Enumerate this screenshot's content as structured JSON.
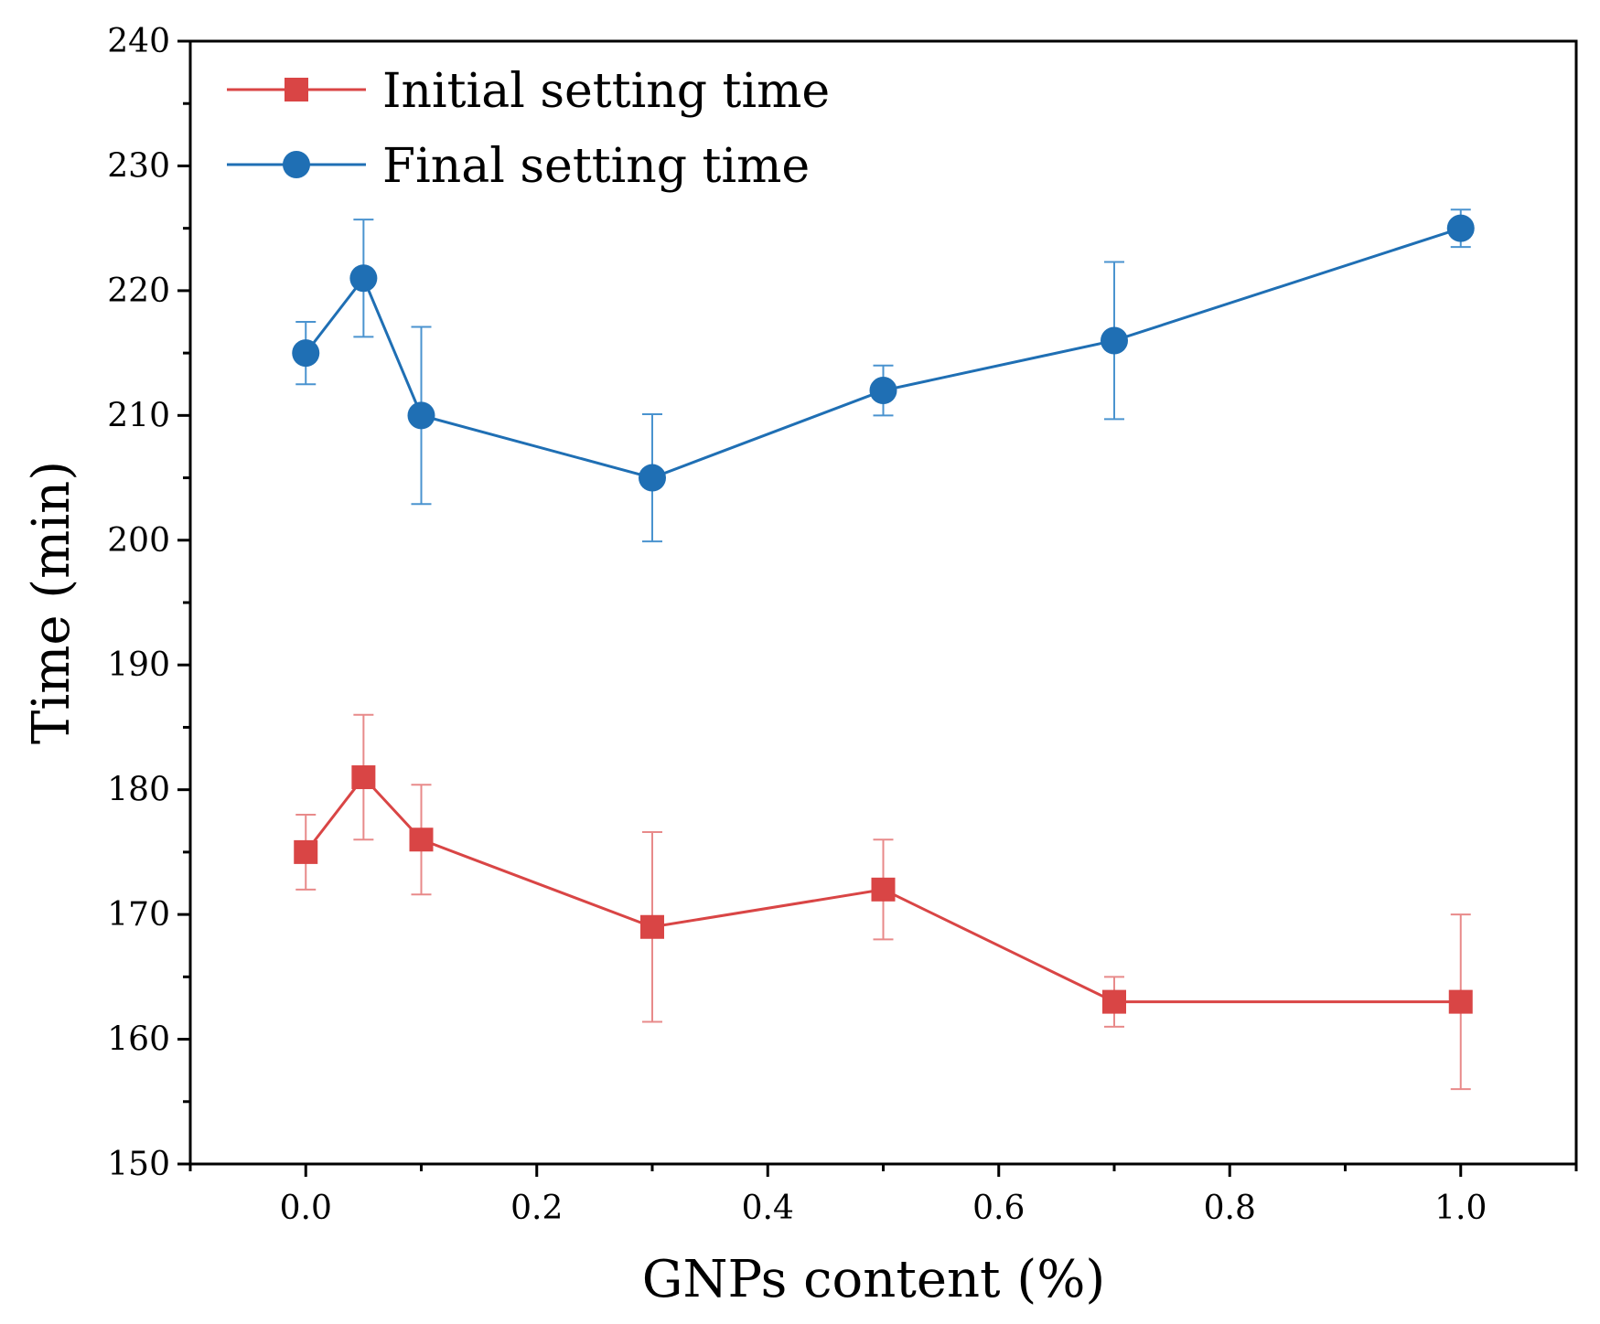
{
  "chart_data": {
    "type": "line",
    "title": "",
    "xlabel": "GNPs content (%)",
    "ylabel": "Time (min)",
    "xlim": [
      -0.1,
      1.1
    ],
    "ylim": [
      150,
      240
    ],
    "xticks": [
      "0.0",
      "0.2",
      "0.4",
      "0.6",
      "0.8",
      "1.0"
    ],
    "yticks": [
      "150",
      "160",
      "170",
      "180",
      "190",
      "200",
      "210",
      "220",
      "230",
      "240"
    ],
    "grid": false,
    "legend_position": "top-left",
    "x": [
      0.0,
      0.05,
      0.1,
      0.3,
      0.5,
      0.7,
      1.0
    ],
    "series": [
      {
        "name": "Initial setting time",
        "color": "#d94545",
        "marker": "square",
        "values": [
          175,
          181,
          176,
          169,
          172,
          163,
          163
        ],
        "err_low": [
          172,
          176,
          171.6,
          161.4,
          168,
          161,
          156
        ],
        "err_high": [
          178,
          186,
          180.4,
          176.6,
          176,
          165,
          170
        ]
      },
      {
        "name": "Final setting time",
        "color": "#1f6fb4",
        "marker": "circle",
        "values": [
          215,
          221,
          210,
          205,
          212,
          216,
          225
        ],
        "err_low": [
          212.5,
          216.3,
          202.9,
          199.9,
          210,
          209.7,
          223.5
        ],
        "err_high": [
          217.5,
          225.7,
          217.1,
          210.1,
          214,
          222.3,
          226.5
        ]
      }
    ]
  }
}
